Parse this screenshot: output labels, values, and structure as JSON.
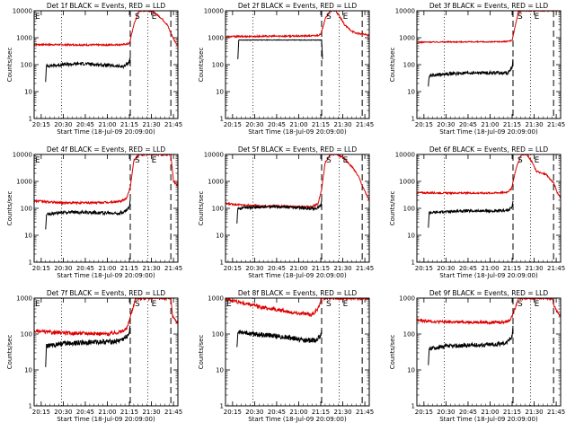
{
  "figure": {
    "colors": {
      "events": "#000000",
      "lld": "#dd0000",
      "axes": "#000000",
      "background": "#ffffff"
    },
    "x_tick_labels": [
      "20:15",
      "20:30",
      "20:45",
      "21:00",
      "21:15",
      "21:30",
      "21:45"
    ]
  },
  "chart_data": [
    {
      "type": "line",
      "title": "Det 1f BLACK = Events, RED = LLD",
      "xlabel": "Start Time (18-Jul-09 20:09:00)",
      "ylabel": "Counts/sec",
      "xlim": [
        20.17,
        21.8
      ],
      "yscale": "log",
      "ylim": [
        1,
        10000
      ],
      "y_tick_labels": [
        "1",
        "10",
        "100",
        "1000",
        "10000"
      ],
      "x_ticks": [
        20.25,
        20.5,
        20.75,
        21.0,
        21.25,
        21.5,
        21.75
      ],
      "dotted_lines": [
        20.48,
        21.46,
        21.8
      ],
      "dashed_lines": [
        21.26,
        21.72
      ],
      "annotations": [
        {
          "x": 20.17,
          "y": 10000,
          "text": "E"
        },
        {
          "x": 21.34,
          "y": 10000,
          "text": "S"
        },
        {
          "x": 21.53,
          "y": 10000,
          "text": "E"
        }
      ],
      "series": [
        {
          "name": "LLD",
          "color": "red",
          "x": [
            20.17,
            20.5,
            20.8,
            21.0,
            21.18,
            21.25,
            21.3,
            21.36,
            21.42,
            21.48,
            21.52,
            21.58,
            21.62,
            21.68,
            21.72,
            21.76,
            21.8
          ],
          "y": [
            560,
            550,
            540,
            540,
            560,
            600,
            3000,
            10000,
            10000,
            10000,
            9000,
            6500,
            5000,
            3000,
            1500,
            800,
            500
          ],
          "noise": 0.03
        },
        {
          "name": "Events",
          "color": "black",
          "x": [
            20.3,
            20.31,
            20.5,
            20.7,
            20.8,
            21.0,
            21.15,
            21.2,
            21.25,
            21.26
          ],
          "y": [
            25,
            90,
            100,
            110,
            105,
            95,
            85,
            90,
            130,
            200
          ],
          "noise": 0.06
        }
      ]
    },
    {
      "type": "line",
      "title": "Det 2f BLACK = Events, RED = LLD",
      "xlabel": "Start Time (18-Jul-09 20:09:00)",
      "ylabel": "Counts/sec",
      "xlim": [
        20.17,
        21.8
      ],
      "yscale": "log",
      "ylim": [
        1,
        10000
      ],
      "y_tick_labels": [
        "1",
        "10",
        "100",
        "1000",
        "10000"
      ],
      "x_ticks": [
        20.25,
        20.5,
        20.75,
        21.0,
        21.25,
        21.5,
        21.75
      ],
      "dotted_lines": [
        20.48,
        21.46,
        21.8
      ],
      "dashed_lines": [
        21.26,
        21.72
      ],
      "annotations": [
        {
          "x": 21.34,
          "y": 10000,
          "text": "S"
        },
        {
          "x": 21.53,
          "y": 10000,
          "text": "E"
        }
      ],
      "series": [
        {
          "name": "LLD",
          "color": "red",
          "x": [
            20.17,
            20.5,
            20.8,
            21.0,
            21.18,
            21.25,
            21.3,
            21.36,
            21.42,
            21.48,
            21.52,
            21.58,
            21.64,
            21.7,
            21.76,
            21.8
          ],
          "y": [
            1100,
            1120,
            1150,
            1150,
            1180,
            1300,
            5000,
            10000,
            10000,
            5000,
            3000,
            2000,
            1500,
            1400,
            1300,
            1200
          ],
          "noise": 0.03
        },
        {
          "name": "Events",
          "color": "black",
          "x": [
            20.31,
            20.32,
            21.26,
            21.27
          ],
          "y": [
            160,
            820,
            820,
            160
          ],
          "noise": 0.01
        }
      ]
    },
    {
      "type": "line",
      "title": "Det 3f BLACK = Events, RED = LLD",
      "xlabel": "Start Time (18-Jul-09 20:09:00)",
      "ylabel": "Counts/sec",
      "xlim": [
        20.17,
        21.8
      ],
      "yscale": "log",
      "ylim": [
        1,
        10000
      ],
      "y_tick_labels": [
        "1",
        "10",
        "100",
        "1000",
        "10000"
      ],
      "x_ticks": [
        20.25,
        20.5,
        20.75,
        21.0,
        21.25,
        21.5,
        21.75
      ],
      "dotted_lines": [
        20.48,
        21.46,
        21.8
      ],
      "dashed_lines": [
        21.26,
        21.72
      ],
      "annotations": [
        {
          "x": 21.34,
          "y": 10000,
          "text": "S"
        },
        {
          "x": 21.53,
          "y": 10000,
          "text": "E"
        }
      ],
      "series": [
        {
          "name": "LLD",
          "color": "red",
          "x": [
            20.17,
            20.5,
            20.8,
            21.0,
            21.18,
            21.25,
            21.32,
            21.38,
            21.45,
            21.5,
            21.56,
            21.62,
            21.68,
            21.74,
            21.8
          ],
          "y": [
            680,
            700,
            700,
            700,
            720,
            800,
            9000,
            10000,
            10000,
            10000,
            10000,
            10000,
            10000,
            10000,
            10000
          ],
          "noise": 0.02
        },
        {
          "name": "Events",
          "color": "black",
          "x": [
            20.3,
            20.31,
            20.5,
            20.7,
            20.9,
            21.1,
            21.2,
            21.25,
            21.26
          ],
          "y": [
            15,
            40,
            45,
            48,
            50,
            50,
            48,
            80,
            160
          ],
          "noise": 0.06
        }
      ]
    },
    {
      "type": "line",
      "title": "Det 4f BLACK = Events, RED = LLD",
      "xlabel": "Start Time (18-Jul-09 20:09:00)",
      "ylabel": "Counts/sec",
      "xlim": [
        20.17,
        21.8
      ],
      "yscale": "log",
      "ylim": [
        1,
        10000
      ],
      "y_tick_labels": [
        "1",
        "10",
        "100",
        "1000",
        "10000"
      ],
      "x_ticks": [
        20.25,
        20.5,
        20.75,
        21.0,
        21.25,
        21.5,
        21.75
      ],
      "dotted_lines": [
        20.48,
        21.46,
        21.8
      ],
      "dashed_lines": [
        21.26,
        21.72
      ],
      "annotations": [
        {
          "x": 20.17,
          "y": 10000,
          "text": "E"
        },
        {
          "x": 21.34,
          "y": 10000,
          "text": "S"
        },
        {
          "x": 21.53,
          "y": 10000,
          "text": "E"
        }
      ],
      "series": [
        {
          "name": "LLD",
          "color": "red",
          "x": [
            20.17,
            20.35,
            20.5,
            20.7,
            21.0,
            21.15,
            21.22,
            21.26,
            21.3,
            21.36,
            21.44,
            21.5,
            21.6,
            21.72,
            21.75,
            21.8
          ],
          "y": [
            190,
            170,
            160,
            160,
            165,
            180,
            240,
            600,
            6000,
            10000,
            10000,
            10000,
            10000,
            10000,
            1000,
            700
          ],
          "noise": 0.04
        },
        {
          "name": "Events",
          "color": "black",
          "x": [
            20.3,
            20.31,
            20.5,
            20.7,
            20.9,
            21.1,
            21.2,
            21.25,
            21.26
          ],
          "y": [
            15,
            60,
            70,
            72,
            70,
            65,
            75,
            110,
            200
          ],
          "noise": 0.06
        }
      ]
    },
    {
      "type": "line",
      "title": "Det 5f BLACK = Events, RED = LLD",
      "xlabel": "Start Time (18-Jul-09 20:09:00)",
      "ylabel": "Counts/sec",
      "xlim": [
        20.17,
        21.8
      ],
      "yscale": "log",
      "ylim": [
        1,
        10000
      ],
      "y_tick_labels": [
        "1",
        "10",
        "100",
        "1000",
        "10000"
      ],
      "x_ticks": [
        20.25,
        20.5,
        20.75,
        21.0,
        21.25,
        21.5,
        21.75
      ],
      "dotted_lines": [
        20.48,
        21.46,
        21.8
      ],
      "dashed_lines": [
        21.26,
        21.72
      ],
      "annotations": [
        {
          "x": 21.34,
          "y": 10000,
          "text": "S"
        },
        {
          "x": 21.53,
          "y": 10000,
          "text": "E"
        }
      ],
      "series": [
        {
          "name": "LLD",
          "color": "red",
          "x": [
            20.17,
            20.4,
            20.6,
            20.8,
            21.0,
            21.15,
            21.22,
            21.26,
            21.3,
            21.36,
            21.42,
            21.5,
            21.56,
            21.62,
            21.68,
            21.74,
            21.8
          ],
          "y": [
            150,
            130,
            120,
            120,
            115,
            115,
            150,
            500,
            5000,
            10000,
            10000,
            8000,
            5000,
            3000,
            1500,
            500,
            200
          ],
          "noise": 0.03
        },
        {
          "name": "Events",
          "color": "black",
          "x": [
            20.3,
            20.31,
            20.5,
            20.7,
            20.9,
            21.1,
            21.2,
            21.25,
            21.26
          ],
          "y": [
            30,
            100,
            110,
            115,
            110,
            100,
            100,
            130,
            200
          ],
          "noise": 0.05
        }
      ]
    },
    {
      "type": "line",
      "title": "Det 6f BLACK = Events, RED = LLD",
      "xlabel": "Start Time (18-Jul-09 20:09:00)",
      "ylabel": "Counts/sec",
      "xlim": [
        20.17,
        21.8
      ],
      "yscale": "log",
      "ylim": [
        1,
        10000
      ],
      "y_tick_labels": [
        "1",
        "10",
        "100",
        "1000",
        "10000"
      ],
      "x_ticks": [
        20.25,
        20.5,
        20.75,
        21.0,
        21.25,
        21.5,
        21.75
      ],
      "dotted_lines": [
        20.48,
        21.46,
        21.8
      ],
      "dashed_lines": [
        21.26,
        21.72
      ],
      "annotations": [
        {
          "x": 21.34,
          "y": 10000,
          "text": "S"
        },
        {
          "x": 21.53,
          "y": 10000,
          "text": "E"
        }
      ],
      "series": [
        {
          "name": "LLD",
          "color": "red",
          "x": [
            20.17,
            20.5,
            20.8,
            21.0,
            21.18,
            21.24,
            21.3,
            21.36,
            21.42,
            21.48,
            21.52,
            21.58,
            21.64,
            21.68,
            21.72,
            21.76,
            21.8
          ],
          "y": [
            380,
            370,
            370,
            370,
            390,
            500,
            3500,
            10000,
            10000,
            5000,
            2500,
            2000,
            1800,
            1200,
            900,
            400,
            250
          ],
          "noise": 0.03
        },
        {
          "name": "Events",
          "color": "black",
          "x": [
            20.3,
            20.31,
            20.5,
            20.7,
            20.9,
            21.1,
            21.2,
            21.25,
            21.26
          ],
          "y": [
            20,
            70,
            75,
            80,
            80,
            78,
            85,
            110,
            190
          ],
          "noise": 0.05
        }
      ]
    },
    {
      "type": "line",
      "title": "Det 7f BLACK = Events, RED = LLD",
      "xlabel": "Start Time (18-Jul-09 20:09:00)",
      "ylabel": "Counts/sec",
      "xlim": [
        20.17,
        21.8
      ],
      "yscale": "log",
      "ylim": [
        1,
        1000
      ],
      "y_tick_labels": [
        "1",
        "10",
        "100",
        "1000"
      ],
      "x_ticks": [
        20.25,
        20.5,
        20.75,
        21.0,
        21.25,
        21.5,
        21.75
      ],
      "dotted_lines": [
        20.48,
        21.46,
        21.8
      ],
      "dashed_lines": [
        21.26,
        21.72
      ],
      "annotations": [
        {
          "x": 20.17,
          "y": 1000,
          "text": "E"
        },
        {
          "x": 21.34,
          "y": 1000,
          "text": "S"
        },
        {
          "x": 21.53,
          "y": 1000,
          "text": "E"
        }
      ],
      "series": [
        {
          "name": "LLD",
          "color": "red",
          "x": [
            20.17,
            20.4,
            20.6,
            20.8,
            21.0,
            21.15,
            21.22,
            21.26,
            21.32,
            21.4,
            21.5,
            21.6,
            21.72,
            21.74,
            21.8
          ],
          "y": [
            120,
            110,
            105,
            105,
            100,
            115,
            140,
            300,
            1000,
            1000,
            1000,
            1000,
            1000,
            300,
            200
          ],
          "noise": 0.05
        },
        {
          "name": "Events",
          "color": "black",
          "x": [
            20.3,
            20.31,
            20.5,
            20.7,
            20.9,
            21.1,
            21.2,
            21.25,
            21.26
          ],
          "y": [
            12,
            45,
            55,
            58,
            60,
            62,
            75,
            110,
            170
          ],
          "noise": 0.07
        }
      ]
    },
    {
      "type": "line",
      "title": "Det 8f BLACK = Events, RED = LLD",
      "xlabel": "Start Time (18-Jul-09 20:09:00)",
      "ylabel": "Counts/sec",
      "xlim": [
        20.17,
        21.8
      ],
      "yscale": "log",
      "ylim": [
        1,
        1000
      ],
      "y_tick_labels": [
        "1",
        "10",
        "100",
        "1000"
      ],
      "x_ticks": [
        20.25,
        20.5,
        20.75,
        21.0,
        21.25,
        21.5,
        21.75
      ],
      "dotted_lines": [
        20.48,
        21.46,
        21.8
      ],
      "dashed_lines": [
        21.26,
        21.72
      ],
      "annotations": [
        {
          "x": 20.17,
          "y": 1000,
          "text": "E"
        },
        {
          "x": 21.34,
          "y": 1000,
          "text": "S"
        },
        {
          "x": 21.53,
          "y": 1000,
          "text": "E"
        }
      ],
      "series": [
        {
          "name": "LLD",
          "color": "red",
          "x": [
            20.17,
            20.4,
            20.6,
            20.8,
            21.0,
            21.15,
            21.22,
            21.26,
            21.32,
            21.4,
            21.5,
            21.6,
            21.7,
            21.8
          ],
          "y": [
            950,
            700,
            550,
            450,
            380,
            350,
            500,
            1000,
            1000,
            1000,
            1000,
            1000,
            1000,
            1000
          ],
          "noise": 0.05
        },
        {
          "name": "Events",
          "color": "black",
          "x": [
            20.3,
            20.31,
            20.5,
            20.7,
            20.9,
            21.1,
            21.2,
            21.25,
            21.26
          ],
          "y": [
            40,
            120,
            100,
            90,
            80,
            65,
            70,
            90,
            140
          ],
          "noise": 0.07
        }
      ]
    },
    {
      "type": "line",
      "title": "Det 9f BLACK = Events, RED = LLD",
      "xlabel": "Start Time (18-Jul-09 20:09:00)",
      "ylabel": "Counts/sec",
      "xlim": [
        20.17,
        21.8
      ],
      "yscale": "log",
      "ylim": [
        1,
        1000
      ],
      "y_tick_labels": [
        "1",
        "10",
        "100",
        "1000"
      ],
      "x_ticks": [
        20.25,
        20.5,
        20.75,
        21.0,
        21.25,
        21.5,
        21.75
      ],
      "dotted_lines": [
        20.48,
        21.46,
        21.8
      ],
      "dashed_lines": [
        21.26,
        21.72
      ],
      "annotations": [
        {
          "x": 21.34,
          "y": 1000,
          "text": "S"
        },
        {
          "x": 21.53,
          "y": 1000,
          "text": "E"
        }
      ],
      "series": [
        {
          "name": "LLD",
          "color": "red",
          "x": [
            20.17,
            20.4,
            20.6,
            20.8,
            21.0,
            21.15,
            21.22,
            21.26,
            21.32,
            21.4,
            21.5,
            21.6,
            21.7,
            21.74,
            21.8
          ],
          "y": [
            240,
            220,
            215,
            215,
            210,
            215,
            240,
            350,
            1000,
            1000,
            1000,
            1000,
            1000,
            500,
            300
          ],
          "noise": 0.04
        },
        {
          "name": "Events",
          "color": "black",
          "x": [
            20.3,
            20.31,
            20.5,
            20.7,
            20.9,
            21.1,
            21.2,
            21.25,
            21.26
          ],
          "y": [
            12,
            40,
            45,
            48,
            50,
            52,
            60,
            90,
            170
          ],
          "noise": 0.06
        }
      ]
    }
  ]
}
